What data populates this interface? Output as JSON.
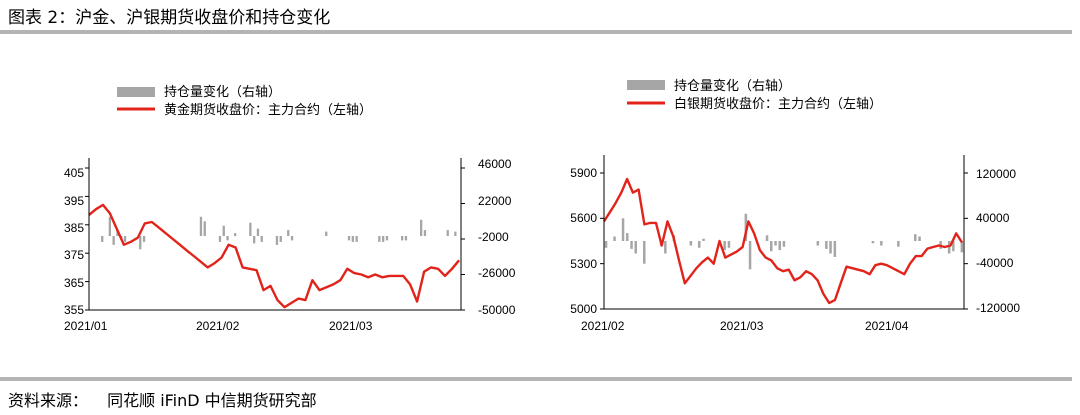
{
  "header": {
    "title": "图表 2：沪金、沪银期货收盘价和持仓变化"
  },
  "footer": {
    "source_label": "资料来源：",
    "source_text": "同花顺 iFinD 中信期货研究部"
  },
  "chart_data": [
    {
      "type": "line+bar",
      "legend": {
        "bar": "持仓量变化（右轴）",
        "line": "黄金期货收盘价：主力合约（左轴）"
      },
      "colors": {
        "line": "#e2231a",
        "bar": "#a6a6a6"
      },
      "x_labels": [
        "2021/01",
        "2021/02",
        "2021/03"
      ],
      "y_left": {
        "min": 355,
        "max": 405,
        "ticks": [
          405,
          395,
          385,
          375,
          365,
          355
        ]
      },
      "y_right": {
        "min": -50000,
        "max": 46000,
        "ticks": [
          46000,
          22000,
          -2000,
          -26000,
          -50000
        ]
      },
      "line_values": [
        388.5,
        390.5,
        392.0,
        389.0,
        383.5,
        378.0,
        379.0,
        380.5,
        385.5,
        386.0,
        384.0,
        382.0,
        380.0,
        378.0,
        376.0,
        374.0,
        372.0,
        370.0,
        371.5,
        373.5,
        378.0,
        377.0,
        370.0,
        369.5,
        369.0,
        362.0,
        363.5,
        358.5,
        356.0,
        357.5,
        359.0,
        358.5,
        365.5,
        362.0,
        363.0,
        364.0,
        365.5,
        369.5,
        368.0,
        367.5,
        366.5,
        367.5,
        366.5,
        367.0,
        367.0,
        367.0,
        364.0,
        358.0,
        368.5,
        370.0,
        369.5,
        367.0,
        369.5,
        372.5
      ],
      "bar_values": [
        0,
        0,
        0,
        -4000,
        0,
        13000,
        -6000,
        4000,
        -2000,
        -4000,
        0,
        0,
        0,
        -9000,
        -4000,
        0,
        0,
        0,
        0,
        0,
        0,
        0,
        0,
        0,
        0,
        0,
        0,
        0,
        0,
        13000,
        10000,
        0,
        0,
        0,
        -4000,
        7000,
        -3000,
        0,
        2000,
        0,
        0,
        0,
        9000,
        -5000,
        5000,
        -4000,
        0,
        0,
        0,
        -6000,
        -4000,
        0,
        4000,
        -3000,
        0,
        0,
        0,
        0,
        0,
        0,
        0,
        0,
        3000,
        0,
        0,
        0,
        0,
        0,
        -3000,
        -4000,
        -4000,
        0,
        0,
        0,
        0,
        0,
        -4000,
        -4000,
        -3000,
        0,
        0,
        0,
        -3000,
        -3000,
        0,
        0,
        0,
        11000,
        4000,
        0,
        0,
        0,
        0,
        0,
        4000,
        0,
        3000,
        0
      ]
    },
    {
      "type": "line+bar",
      "legend": {
        "bar": "持仓量变化（右轴）",
        "line": "白银期货收盘价：主力合约（左轴）"
      },
      "colors": {
        "line": "#e2231a",
        "bar": "#a6a6a6"
      },
      "x_labels": [
        "2021/02",
        "2021/03",
        "2021/04"
      ],
      "y_left": {
        "min": 5000,
        "max": 5900,
        "ticks": [
          5900,
          5600,
          5300,
          5000
        ]
      },
      "y_right": {
        "min": -120000,
        "max": 120000,
        "ticks": [
          120000,
          40000,
          -40000,
          -120000
        ]
      },
      "line_values": [
        5580,
        5640,
        5700,
        5770,
        5860,
        5770,
        5790,
        5560,
        5570,
        5570,
        5420,
        5580,
        5480,
        5320,
        5170,
        5220,
        5270,
        5310,
        5340,
        5300,
        5450,
        5340,
        5360,
        5380,
        5410,
        5580,
        5500,
        5390,
        5340,
        5320,
        5270,
        5250,
        5260,
        5190,
        5210,
        5250,
        5230,
        5190,
        5100,
        5040,
        5060,
        5170,
        5280,
        5270,
        5260,
        5250,
        5230,
        5290,
        5300,
        5290,
        5270,
        5250,
        5230,
        5300,
        5350,
        5350,
        5400,
        5410,
        5420,
        5410,
        5420,
        5500,
        5440
      ],
      "bar_values": [
        -12000,
        0,
        8000,
        0,
        40000,
        14000,
        -14000,
        -22000,
        0,
        -40000,
        0,
        0,
        0,
        -8000,
        -22000,
        0,
        10000,
        0,
        0,
        0,
        -8000,
        0,
        -12000,
        4000,
        0,
        0,
        0,
        0,
        -16000,
        -12000,
        0,
        0,
        0,
        48000,
        -50000,
        0,
        0,
        0,
        10000,
        -18000,
        -8000,
        -16000,
        -10000,
        0,
        0,
        0,
        0,
        0,
        0,
        0,
        -8000,
        0,
        -14000,
        -22000,
        -28000,
        0,
        0,
        0,
        0,
        0,
        0,
        0,
        0,
        -4000,
        0,
        -8000,
        0,
        0,
        0,
        -10000,
        0,
        0,
        0,
        12000,
        8000,
        0,
        0,
        0,
        0,
        -14000,
        0,
        -22000,
        -18000,
        0,
        -20000
      ]
    }
  ]
}
